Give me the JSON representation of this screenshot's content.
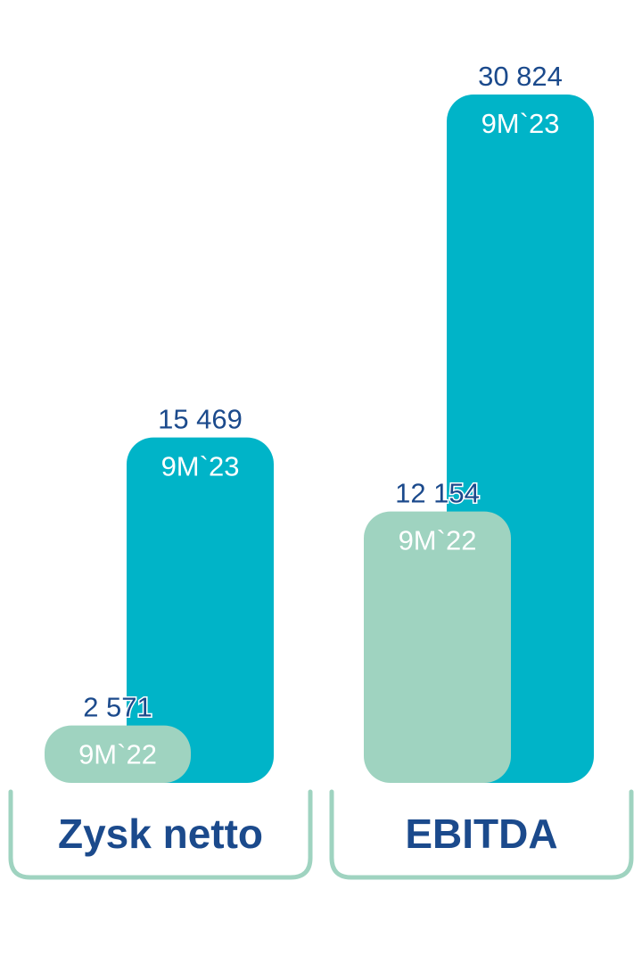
{
  "colors": {
    "prev_bar": "#9fd3c0",
    "curr_bar": "#00b4c8",
    "value_text": "#1b4a8c",
    "period_text": "#ffffff",
    "bracket": "#9fd3c0",
    "group_label": "#1b4a8c"
  },
  "chart_data": {
    "type": "bar",
    "categories": [
      "Zysk netto",
      "EBITDA"
    ],
    "series": [
      {
        "name": "9M`22",
        "values": [
          2571,
          12154
        ]
      },
      {
        "name": "9M`23",
        "values": [
          15469,
          30824
        ]
      }
    ],
    "value_labels": [
      [
        "2 571",
        "15 469"
      ],
      [
        "12 154",
        "30 824"
      ]
    ],
    "period_labels": [
      "9M`22",
      "9M`23"
    ],
    "ylim": [
      0,
      30824
    ],
    "title": "",
    "xlabel": "",
    "ylabel": "",
    "grid": false
  }
}
